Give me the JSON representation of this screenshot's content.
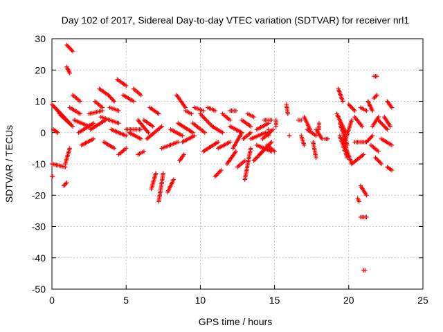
{
  "chart_data": {
    "type": "scatter",
    "title": "Day 102 of 2017, Sidereal Day-to-day VTEC variation (SDTVAR) for receiver nrl1",
    "xlabel": "GPS time / hours",
    "ylabel": "SDTVAR / TECUs",
    "xlim": [
      0,
      25
    ],
    "ylim": [
      -50,
      30
    ],
    "xticks": [
      "0",
      "5",
      "10",
      "15",
      "20",
      "25"
    ],
    "yticks": [
      "30",
      "20",
      "10",
      "0",
      "-10",
      "-20",
      "-30",
      "-40",
      "-50"
    ],
    "grid": true,
    "marker": "+",
    "color": "#ff0000",
    "segments": [
      [
        [
          0.0,
          9
        ],
        [
          0.8,
          5
        ]
      ],
      [
        [
          0.1,
          1
        ],
        [
          0.4,
          0
        ]
      ],
      [
        [
          0.0,
          -10
        ],
        [
          0.9,
          -11
        ]
      ],
      [
        [
          0.0,
          -14
        ],
        [
          0.05,
          -14
        ]
      ],
      [
        [
          0.2,
          8
        ],
        [
          1.2,
          3
        ]
      ],
      [
        [
          0.5,
          6
        ],
        [
          1.4,
          2
        ]
      ],
      [
        [
          0.8,
          -17
        ],
        [
          1.0,
          -16
        ]
      ],
      [
        [
          0.9,
          -10
        ],
        [
          1.2,
          -5
        ]
      ],
      [
        [
          1.0,
          28
        ],
        [
          1.4,
          26
        ]
      ],
      [
        [
          1.0,
          21
        ],
        [
          1.2,
          19
        ]
      ],
      [
        [
          1.4,
          12
        ],
        [
          1.9,
          10
        ]
      ],
      [
        [
          1.2,
          8
        ],
        [
          1.9,
          6
        ]
      ],
      [
        [
          1.5,
          4
        ],
        [
          2.5,
          2
        ]
      ],
      [
        [
          1.8,
          0
        ],
        [
          2.8,
          3
        ]
      ],
      [
        [
          2.0,
          -4
        ],
        [
          2.8,
          -2
        ]
      ],
      [
        [
          2.5,
          6
        ],
        [
          3.4,
          7
        ]
      ],
      [
        [
          2.6,
          1
        ],
        [
          3.6,
          4
        ]
      ],
      [
        [
          2.9,
          10
        ],
        [
          3.4,
          8
        ]
      ],
      [
        [
          3.2,
          14
        ],
        [
          3.8,
          12
        ]
      ],
      [
        [
          3.5,
          -3
        ],
        [
          4.2,
          -5
        ]
      ],
      [
        [
          3.3,
          5
        ],
        [
          4.5,
          3
        ]
      ],
      [
        [
          3.8,
          12
        ],
        [
          4.2,
          10
        ]
      ],
      [
        [
          3.9,
          8
        ],
        [
          4.5,
          7
        ]
      ],
      [
        [
          4.0,
          1
        ],
        [
          5.0,
          -1
        ]
      ],
      [
        [
          4.4,
          17
        ],
        [
          5.0,
          15
        ]
      ],
      [
        [
          4.5,
          -7
        ],
        [
          5.0,
          -5
        ]
      ],
      [
        [
          4.8,
          12
        ],
        [
          5.5,
          10
        ]
      ],
      [
        [
          5.0,
          1
        ],
        [
          6.0,
          1
        ]
      ],
      [
        [
          5.2,
          0
        ],
        [
          6.0,
          -2
        ]
      ],
      [
        [
          5.5,
          14
        ],
        [
          6.0,
          12
        ]
      ],
      [
        [
          5.8,
          4
        ],
        [
          6.5,
          0
        ]
      ],
      [
        [
          5.8,
          -7
        ],
        [
          6.2,
          -6
        ]
      ],
      [
        [
          6.2,
          4
        ],
        [
          6.8,
          2
        ]
      ],
      [
        [
          6.6,
          8
        ],
        [
          7.2,
          6
        ]
      ],
      [
        [
          6.4,
          -2
        ],
        [
          7.4,
          2
        ]
      ],
      [
        [
          7.0,
          -13
        ],
        [
          6.7,
          -18
        ]
      ],
      [
        [
          7.5,
          -13
        ],
        [
          7.2,
          -22
        ]
      ],
      [
        [
          7.8,
          -19
        ],
        [
          8.2,
          -15
        ]
      ],
      [
        [
          7.4,
          -5
        ],
        [
          8.5,
          -3
        ]
      ],
      [
        [
          8.0,
          1
        ],
        [
          8.8,
          -1
        ]
      ],
      [
        [
          8.4,
          12
        ],
        [
          9.0,
          8
        ]
      ],
      [
        [
          8.5,
          3
        ],
        [
          9.5,
          0
        ]
      ],
      [
        [
          8.6,
          -9
        ],
        [
          8.9,
          -7
        ]
      ],
      [
        [
          8.8,
          -3
        ],
        [
          9.6,
          -1
        ]
      ],
      [
        [
          9.0,
          7
        ],
        [
          9.4,
          6
        ]
      ],
      [
        [
          9.5,
          3
        ],
        [
          10.3,
          0
        ]
      ],
      [
        [
          9.6,
          8
        ],
        [
          10.2,
          7
        ]
      ],
      [
        [
          10.0,
          6
        ],
        [
          10.8,
          2
        ]
      ],
      [
        [
          10.2,
          -6
        ],
        [
          11.2,
          -3
        ]
      ],
      [
        [
          10.5,
          8
        ],
        [
          11.0,
          7
        ]
      ],
      [
        [
          10.8,
          2
        ],
        [
          11.5,
          0
        ]
      ],
      [
        [
          11.0,
          -14
        ],
        [
          11.4,
          -12
        ]
      ],
      [
        [
          11.2,
          -5
        ],
        [
          12.0,
          -3
        ]
      ],
      [
        [
          11.5,
          6
        ],
        [
          12.0,
          4
        ]
      ],
      [
        [
          11.8,
          -10
        ],
        [
          12.4,
          -6
        ]
      ],
      [
        [
          12.0,
          2
        ],
        [
          12.8,
          0
        ]
      ],
      [
        [
          12.0,
          7
        ],
        [
          12.4,
          7
        ]
      ],
      [
        [
          12.2,
          -5
        ],
        [
          12.8,
          0
        ]
      ],
      [
        [
          12.5,
          -11
        ],
        [
          13.0,
          -9
        ]
      ],
      [
        [
          12.8,
          4
        ],
        [
          13.4,
          2
        ]
      ],
      [
        [
          12.9,
          -2
        ],
        [
          13.4,
          0
        ]
      ],
      [
        [
          13.0,
          -15
        ],
        [
          13.4,
          -5
        ]
      ],
      [
        [
          13.2,
          6
        ],
        [
          13.6,
          5
        ]
      ],
      [
        [
          13.4,
          -2
        ],
        [
          14.4,
          0
        ]
      ],
      [
        [
          13.6,
          -9
        ],
        [
          14.4,
          -5
        ]
      ],
      [
        [
          13.8,
          1
        ],
        [
          14.6,
          3
        ]
      ],
      [
        [
          13.8,
          -4
        ],
        [
          14.8,
          -6
        ]
      ],
      [
        [
          14.0,
          -7
        ],
        [
          14.8,
          -3
        ]
      ],
      [
        [
          14.2,
          -2
        ],
        [
          14.9,
          1
        ]
      ],
      [
        [
          14.3,
          4
        ],
        [
          14.8,
          4
        ]
      ],
      [
        [
          14.5,
          -4
        ],
        [
          15.0,
          -6
        ]
      ],
      [
        [
          14.6,
          -1
        ],
        [
          14.6,
          1
        ]
      ],
      [
        [
          15.1,
          4
        ],
        [
          15.1,
          2
        ]
      ],
      [
        [
          15.8,
          9
        ],
        [
          15.9,
          6
        ]
      ],
      [
        [
          16.0,
          -1
        ],
        [
          16.0,
          -1
        ]
      ],
      [
        [
          16.6,
          4
        ],
        [
          16.8,
          4
        ]
      ],
      [
        [
          16.8,
          -1
        ],
        [
          17.0,
          -4
        ]
      ],
      [
        [
          17.0,
          5
        ],
        [
          17.4,
          1
        ]
      ],
      [
        [
          17.2,
          1
        ],
        [
          17.8,
          -1
        ]
      ],
      [
        [
          17.6,
          -3
        ],
        [
          17.8,
          -8
        ]
      ],
      [
        [
          17.8,
          1
        ],
        [
          18.2,
          -2
        ]
      ],
      [
        [
          18.0,
          3
        ],
        [
          18.0,
          1
        ]
      ],
      [
        [
          18.4,
          -2
        ],
        [
          18.6,
          -2
        ]
      ],
      [
        [
          19.3,
          14
        ],
        [
          19.6,
          10
        ]
      ],
      [
        [
          19.2,
          6
        ],
        [
          19.8,
          0
        ]
      ],
      [
        [
          19.4,
          3
        ],
        [
          19.9,
          -4
        ]
      ],
      [
        [
          19.4,
          -1
        ],
        [
          19.9,
          -8
        ]
      ],
      [
        [
          19.6,
          -2
        ],
        [
          20.2,
          -10
        ]
      ],
      [
        [
          19.8,
          -2
        ],
        [
          20.2,
          4
        ]
      ],
      [
        [
          20.0,
          9
        ],
        [
          20.4,
          7
        ]
      ],
      [
        [
          20.2,
          -10
        ],
        [
          21.0,
          -7
        ]
      ],
      [
        [
          20.4,
          -3
        ],
        [
          21.2,
          -3
        ]
      ],
      [
        [
          20.4,
          5
        ],
        [
          20.9,
          2
        ]
      ],
      [
        [
          20.8,
          8
        ],
        [
          21.2,
          7
        ]
      ],
      [
        [
          20.6,
          -21
        ],
        [
          20.7,
          -22
        ]
      ],
      [
        [
          20.8,
          -17
        ],
        [
          21.2,
          -20
        ]
      ],
      [
        [
          20.8,
          -27
        ],
        [
          21.2,
          -27
        ]
      ],
      [
        [
          21.0,
          -44
        ],
        [
          21.1,
          -44
        ]
      ],
      [
        [
          21.3,
          10
        ],
        [
          21.6,
          7
        ]
      ],
      [
        [
          21.2,
          -3
        ],
        [
          21.6,
          -1
        ]
      ],
      [
        [
          21.5,
          -4
        ],
        [
          22.0,
          -6
        ]
      ],
      [
        [
          21.7,
          11
        ],
        [
          21.9,
          12
        ]
      ],
      [
        [
          21.7,
          18
        ],
        [
          21.9,
          18
        ]
      ],
      [
        [
          21.6,
          2
        ],
        [
          22.0,
          5
        ]
      ],
      [
        [
          22.0,
          4
        ],
        [
          22.6,
          1
        ]
      ],
      [
        [
          21.8,
          -8
        ],
        [
          22.2,
          -10
        ]
      ],
      [
        [
          22.2,
          -2
        ],
        [
          22.9,
          -4
        ]
      ],
      [
        [
          22.4,
          5
        ],
        [
          22.8,
          2
        ]
      ],
      [
        [
          22.6,
          10
        ],
        [
          22.9,
          8
        ]
      ],
      [
        [
          22.6,
          -11
        ],
        [
          22.9,
          -12
        ]
      ]
    ]
  }
}
